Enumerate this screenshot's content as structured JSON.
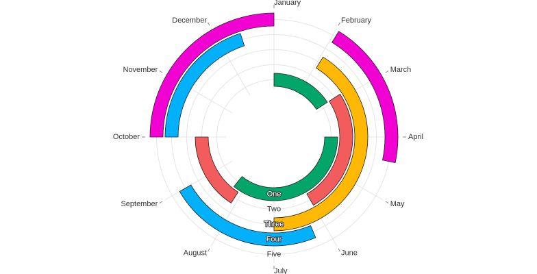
{
  "chart_data": {
    "type": "radial-bar",
    "categories": [
      "January",
      "February",
      "March",
      "April",
      "May",
      "June",
      "July",
      "August",
      "September",
      "October",
      "November",
      "December"
    ],
    "series": [
      {
        "name": "One",
        "color": "#04a56b",
        "segments": [
          [
            0,
            1.9
          ],
          [
            3,
            7.3
          ]
        ]
      },
      {
        "name": "Two",
        "color": "#f25c5c",
        "segments": [
          [
            1.9,
            5
          ],
          [
            7.1,
            9
          ]
        ]
      },
      {
        "name": "Three",
        "color": "#ffb803",
        "segments": [
          [
            1.05,
            6
          ]
        ]
      },
      {
        "name": "Four",
        "color": "#03b1fb",
        "segments": [
          [
            5.25,
            8
          ],
          [
            9,
            11.4
          ]
        ]
      },
      {
        "name": "Five",
        "color": "#f202d2",
        "segments": [
          [
            9,
            12
          ],
          [
            1.05,
            3.4
          ]
        ]
      }
    ],
    "grid": true
  }
}
